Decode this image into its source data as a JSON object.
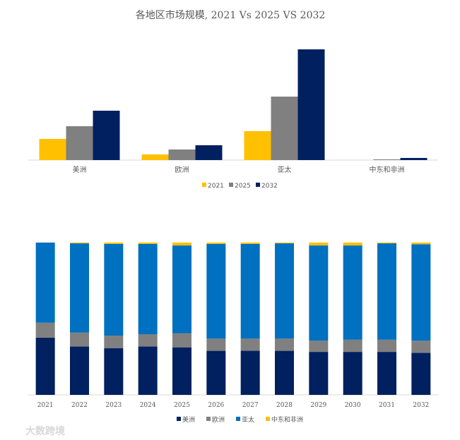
{
  "watermark": "大数跨境",
  "chart_data": [
    {
      "type": "bar",
      "title": "各地区市场规模, 2021 Vs 2025 VS 2032",
      "categories": [
        "美洲",
        "欧洲",
        "亚太",
        "中东和非洲"
      ],
      "series": [
        {
          "name": "2021",
          "color": "#FFC000",
          "values": [
            30,
            8,
            41,
            0
          ]
        },
        {
          "name": "2025",
          "color": "#808080",
          "values": [
            48,
            15,
            90,
            1
          ]
        },
        {
          "name": "2032",
          "color": "#002060",
          "values": [
            70,
            21,
            157,
            3
          ]
        }
      ],
      "xlabel": "",
      "ylabel": "",
      "y_axis_shown": false,
      "grid": false,
      "legend": "bottom"
    },
    {
      "type": "bar",
      "stacked": "percent",
      "title": "",
      "categories": [
        "2021",
        "2022",
        "2023",
        "2024",
        "2025",
        "2026",
        "2027",
        "2028",
        "2029",
        "2030",
        "2031",
        "2032"
      ],
      "series": [
        {
          "name": "美洲",
          "color": "#002060",
          "values": [
            37.5,
            31.8,
            30.7,
            31.8,
            31.2,
            28.9,
            29.0,
            28.9,
            28.2,
            28.2,
            28.2,
            27.6
          ]
        },
        {
          "name": "欧洲",
          "color": "#808080",
          "values": [
            9.9,
            9.1,
            8.2,
            8.0,
            9.3,
            8.0,
            7.9,
            8.0,
            7.4,
            8.0,
            8.0,
            8.0
          ]
        },
        {
          "name": "亚太",
          "color": "#0070C0",
          "values": [
            52.6,
            58.6,
            60.2,
            59.3,
            57.6,
            62.2,
            62.2,
            62.6,
            62.5,
            61.9,
            63.3,
            63.3
          ]
        },
        {
          "name": "中东和非洲",
          "color": "#FFC000",
          "values": [
            0,
            0.5,
            0.9,
            0.9,
            1.9,
            0.9,
            0.9,
            0.5,
            1.9,
            1.9,
            0.5,
            1.1
          ]
        }
      ],
      "ylim": [
        0,
        100
      ],
      "y_axis_shown": false,
      "grid": false,
      "legend": "bottom"
    }
  ]
}
